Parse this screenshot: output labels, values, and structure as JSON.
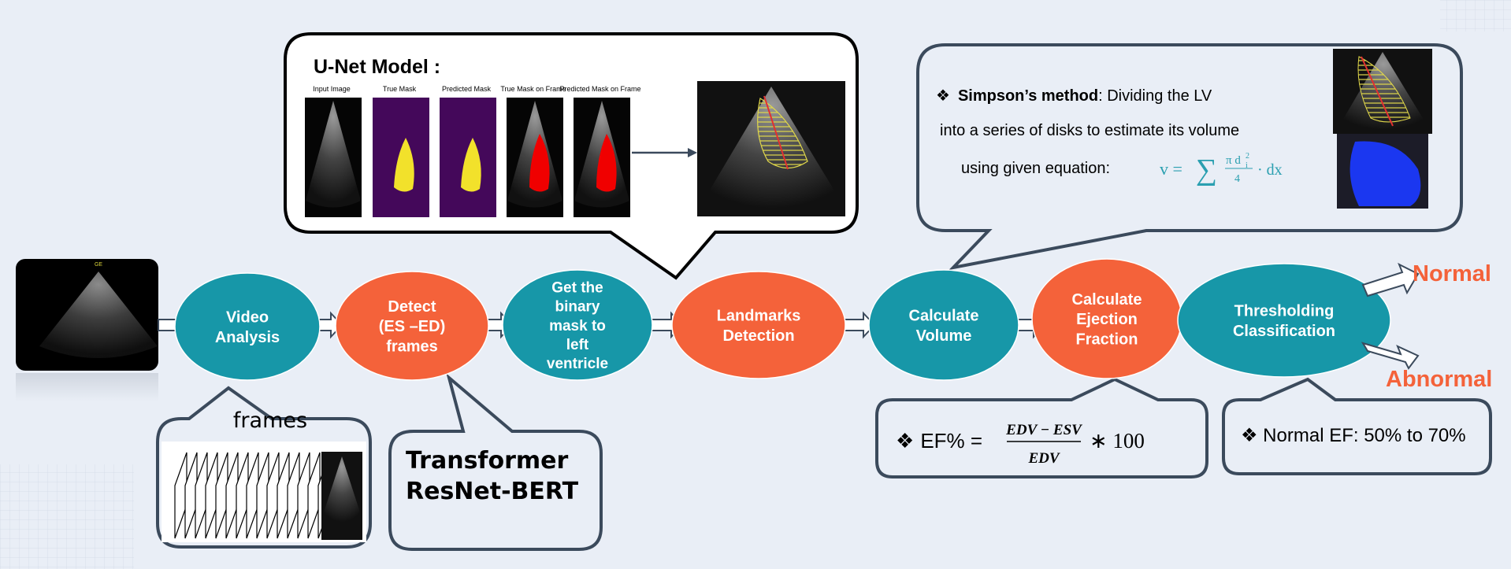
{
  "colors": {
    "background": "#e9eef6",
    "teal": "#1797a8",
    "orange": "#f4623a",
    "callout_stroke": "#3b4a5c",
    "frame_border": "#000000"
  },
  "steps": [
    {
      "id": "video",
      "color": "teal",
      "lines": [
        "Video",
        "Analysis"
      ]
    },
    {
      "id": "detect",
      "color": "orange",
      "lines": [
        "Detect",
        "(ES –ED)",
        "frames"
      ]
    },
    {
      "id": "mask",
      "color": "teal",
      "lines": [
        "Get the",
        "binary",
        "mask to",
        "left",
        "ventricle"
      ]
    },
    {
      "id": "landmarks",
      "color": "orange",
      "lines": [
        "Landmarks",
        "Detection"
      ]
    },
    {
      "id": "volume",
      "color": "teal",
      "lines": [
        "Calculate",
        "Volume"
      ]
    },
    {
      "id": "ef",
      "color": "orange",
      "lines": [
        "Calculate",
        "Ejection",
        "Fraction"
      ]
    },
    {
      "id": "threshold",
      "color": "teal",
      "lines": [
        "Thresholding",
        "Classification"
      ]
    }
  ],
  "outputs": {
    "normal": "Normal",
    "abnormal": "Abnormal"
  },
  "frames_callout": {
    "label": "frames"
  },
  "transformer_callout": {
    "line1": "Transformer",
    "line2": "ResNet-BERT"
  },
  "unet_callout": {
    "title": "U-Net Model :",
    "thumbs": [
      "Input Image",
      "True Mask",
      "Predicted Mask",
      "True Mask on Frame",
      "Predicted Mask on Frame"
    ]
  },
  "simpson_callout": {
    "bullet": "❖",
    "term": "Simpson’s method",
    "line1_rest": ": Dividing  the LV",
    "line2": "into a series of disks to estimate its volume",
    "line3": "using  given  equation:",
    "equation": "v = ∑ π d²ᵢ/4 · dx"
  },
  "ef_callout": {
    "bullet": "❖",
    "label": "EF% =",
    "numerator": "EDV − ESV",
    "denominator": "EDV",
    "suffix": "∗ 100"
  },
  "normal_ef_callout": {
    "text": "❖ Normal EF: 50% to 70%"
  },
  "echo_image": {
    "vendor": "GE"
  }
}
